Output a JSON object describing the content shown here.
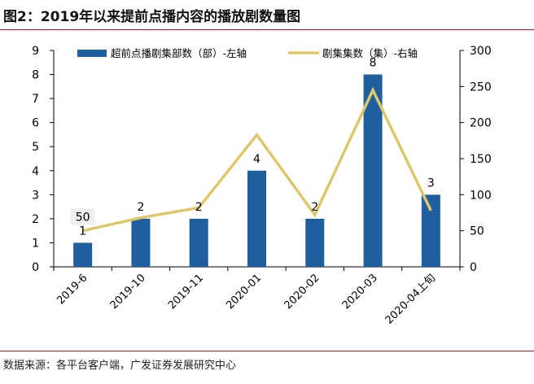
{
  "figure": {
    "title": "图2：2019年以来提前点播内容的播放剧数量图",
    "source": "数据来源：各平台客户端，广发证券发展研究中心"
  },
  "chart_data": {
    "type": "bar",
    "categories": [
      "2019-6",
      "2019-10",
      "2019-11",
      "2020-01",
      "2020-02",
      "2020-03",
      "2020-04上旬"
    ],
    "series": [
      {
        "name": "超前点播剧集部数（部）-左轴",
        "type": "bar",
        "axis": "left",
        "color": "#1f5f9e",
        "values": [
          1,
          2,
          2,
          4,
          2,
          8,
          3
        ],
        "labels": [
          "1",
          "2",
          "2",
          "4",
          "2",
          "8",
          "3"
        ]
      },
      {
        "name": "剧集集数（集）-右轴",
        "type": "line",
        "axis": "right",
        "color": "#dcc76a",
        "values": [
          50,
          68,
          82,
          183,
          72,
          245,
          78
        ],
        "labels": [
          "50",
          "",
          "",
          "",
          "",
          "",
          ""
        ]
      }
    ],
    "left_axis": {
      "min": 0,
      "max": 9,
      "ticks": [
        "0",
        "1",
        "2",
        "3",
        "4",
        "5",
        "6",
        "7",
        "8",
        "9"
      ]
    },
    "right_axis": {
      "min": 0,
      "max": 300,
      "ticks": [
        "0",
        "50",
        "100",
        "150",
        "200",
        "250",
        "300"
      ]
    },
    "grid": false,
    "legend": "top"
  }
}
